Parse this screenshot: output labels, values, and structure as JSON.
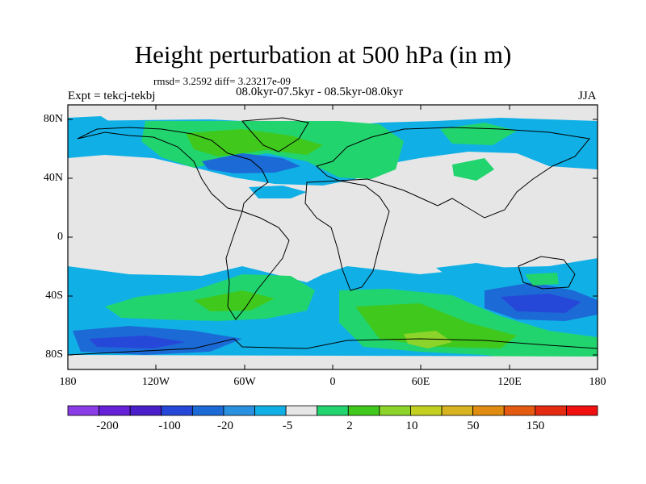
{
  "title": "Height perturbation at 500 hPa (in m)",
  "stats": "rmsd= 3.2592 diff= 3.23217e-09",
  "expt": "Expt = tekcj-tekbj",
  "period": "08.0kyr-07.5kyr - 08.5kyr-08.0kyr",
  "season": "JJA",
  "map": {
    "lon_range": [
      -180,
      180
    ],
    "lat_range": [
      -90,
      90
    ],
    "background_color": "#e6e6e6",
    "x_ticks": [
      "180",
      "120W",
      "60W",
      "0",
      "60E",
      "120E",
      "180"
    ],
    "y_ticks": [
      "80N",
      "40N",
      "0",
      "40S",
      "80S"
    ]
  },
  "colorbar": {
    "colors": [
      "#8a3ce6",
      "#6620d8",
      "#4a1ec8",
      "#2648d8",
      "#1c6ad6",
      "#2a90e0",
      "#10b0e6",
      "#e6e6e6",
      "#22d46e",
      "#40c81c",
      "#8cd42a",
      "#c4d020",
      "#d8b420",
      "#e08c10",
      "#e45a10",
      "#e42a10",
      "#f01010"
    ],
    "labels": [
      "-200",
      "-100",
      "-20",
      "-5",
      "2",
      "10",
      "50",
      "150"
    ]
  }
}
